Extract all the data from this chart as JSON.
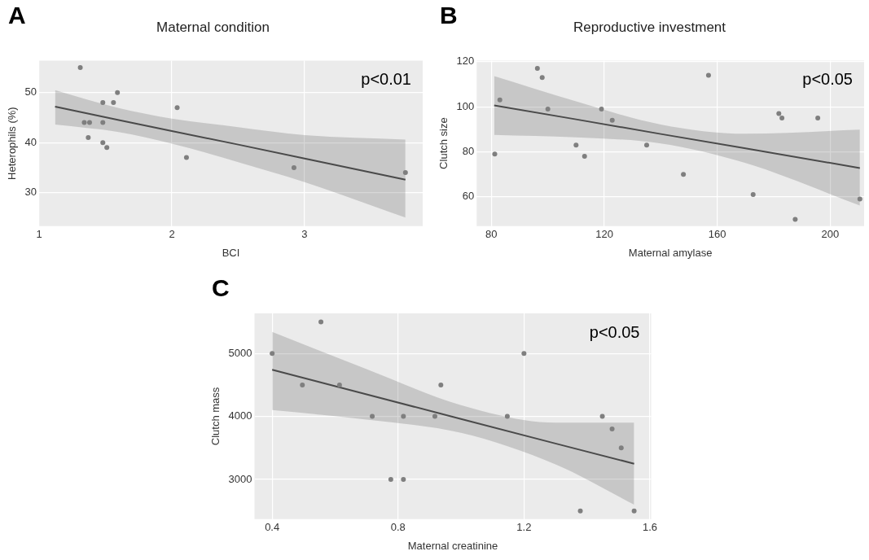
{
  "chart_data": [
    {
      "type": "scatter",
      "title": "Maternal condition",
      "xlabel": "BCI",
      "ylabel": "Heterophils (%)",
      "xlim": [
        1,
        3.89
      ],
      "ylim": [
        23.3,
        56.4
      ],
      "xticks": [
        1,
        2,
        3
      ],
      "yticks": [
        30,
        40,
        50
      ],
      "grid": true,
      "annotations": [
        "A",
        "p<0.01"
      ],
      "series": [
        {
          "marker": "circle",
          "color": "#7f7f7f",
          "x": [
            1.31,
            1.59,
            1.48,
            1.56,
            2.04,
            1.34,
            1.38,
            1.48,
            1.37,
            1.48,
            1.51,
            2.11,
            2.92,
            3.76
          ],
          "values": [
            55,
            50,
            48,
            48,
            47,
            44,
            44,
            44,
            41,
            40,
            39,
            37,
            35,
            34
          ]
        },
        {
          "type": "line",
          "marker": "none",
          "color": "#4a4a4a",
          "x": [
            1.12,
            1.6,
            2.0,
            2.5,
            3.0,
            3.76
          ],
          "values": [
            47.2,
            44.5,
            42.3,
            39.6,
            36.8,
            32.6
          ],
          "lower": [
            43.6,
            42.1,
            39.8,
            36.1,
            32.1,
            25.0
          ],
          "upper": [
            50.5,
            46.9,
            44.8,
            43.1,
            41.5,
            40.6
          ]
        }
      ]
    },
    {
      "type": "scatter",
      "title": "Reproductive investment",
      "xlabel": "Maternal amylase",
      "ylabel": "Clutch size",
      "xlim": [
        74.8,
        212
      ],
      "ylim": [
        47,
        120.5
      ],
      "xticks": [
        80,
        120,
        160,
        200
      ],
      "yticks": [
        60,
        80,
        100,
        120
      ],
      "grid": true,
      "annotations": [
        "B",
        "p<0.05"
      ],
      "series": [
        {
          "marker": "circle",
          "color": "#7f7f7f",
          "x": [
            96.3,
            98,
            156.9,
            83,
            100,
            119,
            122.8,
            181.8,
            182.9,
            195.6,
            81.2,
            110,
            113,
            135,
            148,
            172.7,
            187.6,
            210.5
          ],
          "values": [
            117,
            113,
            114,
            103,
            99,
            99,
            94,
            97,
            95,
            95,
            79,
            83,
            78,
            83,
            70,
            61,
            50,
            59
          ]
        },
        {
          "type": "line",
          "marker": "none",
          "color": "#4a4a4a",
          "x": [
            81,
            110,
            140,
            170,
            210.5
          ],
          "values": [
            100.6,
            94.4,
            87.9,
            81.5,
            72.8
          ],
          "lower": [
            87.5,
            86.4,
            83.7,
            75,
            56.1
          ],
          "upper": [
            113.6,
            102.4,
            92.1,
            88,
            89.8
          ]
        }
      ]
    },
    {
      "type": "scatter",
      "xlabel": "Maternal creatinine",
      "ylabel": "Clutch mass",
      "xlim": [
        0.344,
        1.604
      ],
      "ylim": [
        2370,
        5635
      ],
      "xticks": [
        0.4,
        0.8,
        1.2,
        1.6
      ],
      "yticks": [
        3000,
        4000,
        5000
      ],
      "grid": true,
      "annotations": [
        "C",
        "p<0.05"
      ],
      "series": [
        {
          "marker": "circle",
          "color": "#7f7f7f",
          "x": [
            0.555,
            0.4,
            1.2,
            0.496,
            0.614,
            0.936,
            0.718,
            0.817,
            0.917,
            1.147,
            1.449,
            1.48,
            1.509,
            0.777,
            0.817,
            1.379,
            1.55
          ],
          "values": [
            5500,
            5000,
            5000,
            4500,
            4500,
            4500,
            4000,
            4000,
            4000,
            4000,
            4000,
            3800,
            3500,
            3000,
            3000,
            2500,
            2500
          ]
        },
        {
          "type": "line",
          "marker": "none",
          "color": "#4a4a4a",
          "x": [
            0.4,
            0.7,
            1.0,
            1.3,
            1.55
          ],
          "values": [
            4740,
            4350,
            3960,
            3570,
            3250
          ],
          "lower": [
            4100,
            3950,
            3740,
            3240,
            2600
          ],
          "upper": [
            5340,
            4750,
            4180,
            3900,
            3900
          ]
        }
      ]
    }
  ]
}
